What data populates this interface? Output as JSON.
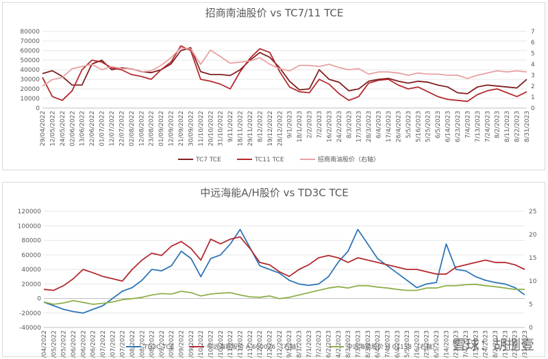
{
  "watermark": "雪球：胡捌壹",
  "chart_data": [
    {
      "type": "line",
      "title": "招商南油股价 vs TC7/11 TCE",
      "ylim": [
        0,
        80000
      ],
      "y2lim": [
        0,
        7
      ],
      "yticks": [
        "0",
        "10000",
        "20000",
        "30000",
        "40000",
        "50000",
        "60000",
        "70000",
        "80000"
      ],
      "y2ticks": [
        "0",
        "1",
        "2",
        "3",
        "4",
        "5",
        "6",
        "7"
      ],
      "x_tick_labels": [
        "29/04/2022",
        "12/05/2022",
        "24/05/2022",
        "02/06/2022",
        "13/06/2022",
        "22/06/2022",
        "01/07/2022",
        "12/07/2022",
        "22/07/2022",
        "02/08/2022",
        "12/08/2022",
        "23/08/2022",
        "01/09/2022",
        "12/09/2022",
        "21/09/2022",
        "30/09/2022",
        "11/10/2022",
        "20/10/2022",
        "31/10/2022",
        "9/11/2022",
        "18/11/2022",
        "29/11/2022",
        "8/12/2022",
        "19/12/2022",
        "28/12/2022",
        "9/1/2023",
        "18/1/2023",
        "2/2/2023",
        "7/2/2023",
        "16/2/2023",
        "24/2/2023",
        "8/3/2023",
        "17/3/2023",
        "28/3/2023",
        "6/4/2023",
        "17/4/2023",
        "26/4/2023",
        "5/5/2023",
        "5/16/2023",
        "5/25/2023",
        "6/5/2023",
        "6/14/2023",
        "6/23/2023",
        "7/4/2023",
        "7/13/2023",
        "7/24/2023",
        "8/2/2023",
        "8/11/2023",
        "8/22/2023",
        "8/31/2023"
      ],
      "series": [
        {
          "name": "TC7 TCE",
          "color": "#7f1d1d",
          "axis": "left",
          "values": [
            36000,
            39000,
            33000,
            24000,
            24000,
            46000,
            50000,
            40000,
            42000,
            41000,
            38000,
            37000,
            40000,
            46000,
            60000,
            63000,
            38000,
            35000,
            35000,
            34000,
            40000,
            50000,
            58000,
            53000,
            42000,
            28000,
            19000,
            20000,
            40000,
            30000,
            27000,
            18000,
            20000,
            28000,
            30000,
            31000,
            28000,
            26000,
            28000,
            27000,
            24000,
            22000,
            16000,
            15000,
            22000,
            24000,
            23000,
            22000,
            21000,
            30000
          ]
        },
        {
          "name": "TC11 TCE",
          "color": "#b3282d",
          "axis": "left",
          "values": [
            32000,
            12000,
            8000,
            18000,
            40000,
            50000,
            48000,
            42000,
            40000,
            35000,
            33000,
            30000,
            40000,
            48000,
            65000,
            60000,
            30000,
            28000,
            25000,
            20000,
            38000,
            52000,
            62000,
            58000,
            38000,
            22000,
            17000,
            16000,
            30000,
            25000,
            15000,
            8000,
            12000,
            26000,
            29000,
            30000,
            24000,
            20000,
            22000,
            17000,
            12000,
            9000,
            8000,
            7000,
            14000,
            18000,
            20000,
            16000,
            12000,
            17000
          ]
        },
        {
          "name": "招商南油股价（右轴）",
          "color": "#e7a1a1",
          "axis": "right",
          "values": [
            2.0,
            2.6,
            2.8,
            3.6,
            3.8,
            4.0,
            3.5,
            3.8,
            3.6,
            3.6,
            3.3,
            3.4,
            3.9,
            4.6,
            5.5,
            5.4,
            4.0,
            5.3,
            4.7,
            4.1,
            4.2,
            4.3,
            4.6,
            4.0,
            3.6,
            3.4,
            3.9,
            3.9,
            3.8,
            4.0,
            3.7,
            3.5,
            3.6,
            3.1,
            3.3,
            3.3,
            3.2,
            3.0,
            3.2,
            3.1,
            3.1,
            3.0,
            3.0,
            2.7,
            3.0,
            3.2,
            3.4,
            3.3,
            3.4,
            3.3
          ]
        }
      ]
    },
    {
      "type": "line",
      "title": "中远海能A/H股价 vs TD3C TCE",
      "ylim": [
        -40000,
        120000
      ],
      "y2lim": [
        0,
        25
      ],
      "yticks": [
        "-40000",
        "-20000",
        "0",
        "20000",
        "40000",
        "60000",
        "80000",
        "100000",
        "120000"
      ],
      "y2ticks": [
        "0",
        "5",
        "10",
        "15",
        "20",
        "25"
      ],
      "x_tick_labels": [
        "29/04/2022",
        "12/05/2022",
        "24/05/2022",
        "02/06/2022",
        "13/06/2022",
        "22/06/2022",
        "01/07/2022",
        "12/07/2022",
        "22/07/2022",
        "02/08/2022",
        "12/08/2022",
        "23/08/2022",
        "01/09/2022",
        "12/09/2022",
        "21/09/2022",
        "30/09/2022",
        "11/10/2022",
        "20/10/2022",
        "31/10/2022",
        "9/11/2022",
        "18/11/2022",
        "29/11/2022",
        "8/12/2022",
        "19/12/2022",
        "28/12/2022",
        "9/1/2023",
        "18/1/2023",
        "27/1/2023",
        "7/2/2023",
        "16/2/2023",
        "24/2/2023",
        "8/3/2023",
        "17/3/2023",
        "28/3/2023",
        "6/4/2023",
        "17/4/2023",
        "26/4/2023",
        "5/5/2023",
        "5/16/2023",
        "5/25/2023",
        "6/5/2023",
        "6/14/2023",
        "6/23/2023",
        "7/4/2023",
        "7/13/2023",
        "7/24/2023",
        "8/2/2023",
        "8/11/2023",
        "8/22/2023",
        "8/31/2023"
      ],
      "series": [
        {
          "name": "TD3C TCE",
          "color": "#2e75b6",
          "axis": "left",
          "values": [
            -5000,
            -10000,
            -15000,
            -18000,
            -20000,
            -15000,
            -10000,
            0,
            10000,
            15000,
            25000,
            40000,
            38000,
            45000,
            65000,
            55000,
            30000,
            55000,
            60000,
            75000,
            95000,
            70000,
            45000,
            40000,
            35000,
            25000,
            20000,
            18000,
            20000,
            30000,
            50000,
            65000,
            95000,
            75000,
            55000,
            45000,
            35000,
            25000,
            15000,
            20000,
            22000,
            75000,
            40000,
            38000,
            30000,
            25000,
            22000,
            20000,
            15000,
            5000
          ]
        },
        {
          "name": "中远海能股价 A 600026 （右轴）",
          "color": "#b3282d",
          "axis": "right",
          "values": [
            8.2,
            8.0,
            9.0,
            10.5,
            12.5,
            11.8,
            11.0,
            10.5,
            10.0,
            12.5,
            14.5,
            16.0,
            15.5,
            17.5,
            18.5,
            17.0,
            14.5,
            19.0,
            18.0,
            19.0,
            19.5,
            17.0,
            14.0,
            13.5,
            12.0,
            11.0,
            12.5,
            13.5,
            15.0,
            15.5,
            15.0,
            14.0,
            15.0,
            14.5,
            14.0,
            13.5,
            13.0,
            12.5,
            12.5,
            12.0,
            11.5,
            11.5,
            13.0,
            13.5,
            14.0,
            14.5,
            14.0,
            14.0,
            13.5,
            12.5
          ]
        },
        {
          "name": "中远海能股价 H 01138 （右轴）",
          "color": "#8db04d",
          "axis": "right",
          "values": [
            5.5,
            5.0,
            5.3,
            5.8,
            5.4,
            5.0,
            5.2,
            5.5,
            6.0,
            6.2,
            6.5,
            7.0,
            7.3,
            7.2,
            7.8,
            7.5,
            6.8,
            7.2,
            7.4,
            7.5,
            7.0,
            6.6,
            6.5,
            6.8,
            6.2,
            6.5,
            7.0,
            7.5,
            8.0,
            8.5,
            8.8,
            8.5,
            9.0,
            9.0,
            8.7,
            8.5,
            8.2,
            8.0,
            8.0,
            8.5,
            8.5,
            9.0,
            9.0,
            9.2,
            9.3,
            9.0,
            8.8,
            8.5,
            8.2,
            8.2
          ]
        }
      ]
    }
  ]
}
